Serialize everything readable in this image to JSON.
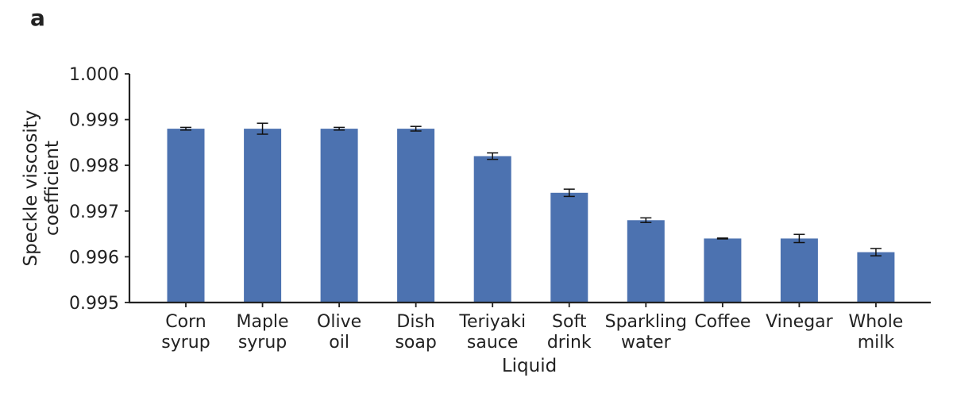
{
  "panel_label": "a",
  "colors": {
    "bar": "#4c72b0",
    "axis": "#222222",
    "error_bar": "#111111"
  },
  "chart_data": {
    "type": "bar",
    "categories": [
      [
        "Corn",
        "syrup"
      ],
      [
        "Maple",
        "syrup"
      ],
      [
        "Olive",
        "oil"
      ],
      [
        "Dish",
        "soap"
      ],
      [
        "Teriyaki",
        "sauce"
      ],
      [
        "Soft",
        "drink"
      ],
      [
        "Sparkling",
        "water"
      ],
      [
        "Coffee"
      ],
      [
        "Vinegar"
      ],
      [
        "Whole",
        "milk"
      ]
    ],
    "values": [
      0.9988,
      0.9988,
      0.9988,
      0.9988,
      0.9982,
      0.9974,
      0.9968,
      0.9964,
      0.9964,
      0.9961
    ],
    "errors": [
      3e-05,
      0.00012,
      3e-05,
      5e-05,
      7e-05,
      8e-05,
      5e-05,
      1e-05,
      9e-05,
      8e-05
    ],
    "xlabel": "Liquid",
    "ylabel": [
      "Speckle viscosity",
      "coefficient"
    ],
    "ylim": [
      0.995,
      1.0
    ],
    "yticks": [
      0.995,
      0.996,
      0.997,
      0.998,
      0.999,
      1.0
    ],
    "ytick_labels": [
      "0.995",
      "0.996",
      "0.997",
      "0.998",
      "0.999",
      "1.000"
    ],
    "grid": false,
    "legend": null
  }
}
